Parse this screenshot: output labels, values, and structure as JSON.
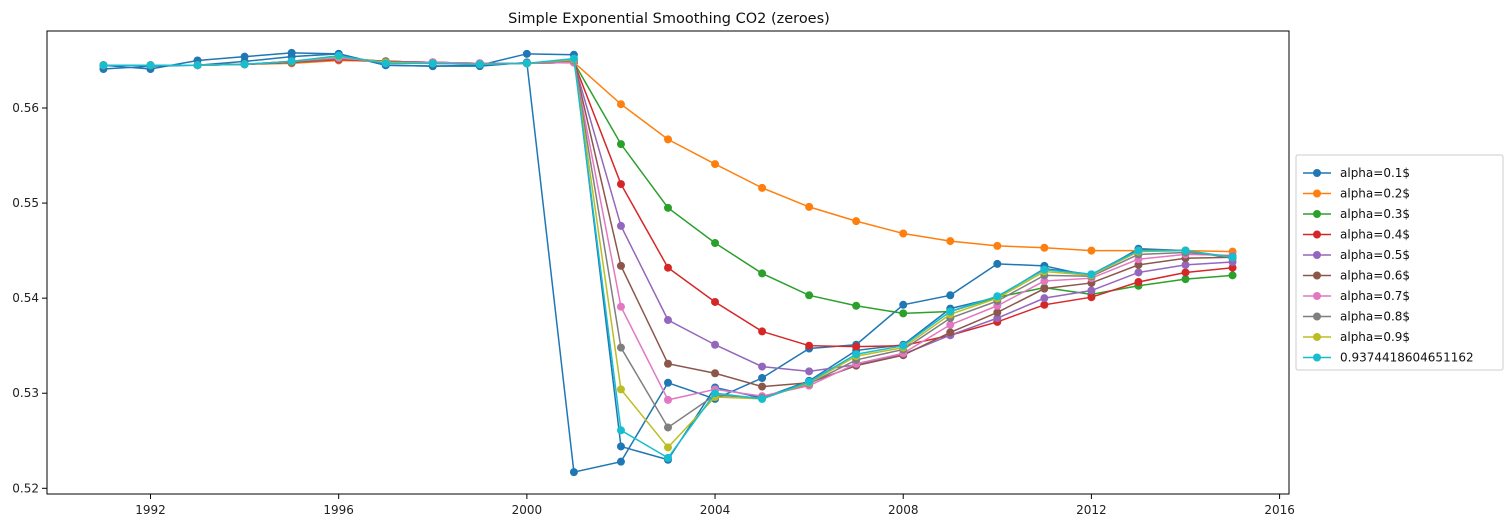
{
  "chart_data": {
    "type": "line",
    "title": "Simple Exponential Smoothing CO2 (zeroes)",
    "xlabel": "",
    "ylabel": "",
    "xlim": [
      1989.8,
      2016.2
    ],
    "ylim": [
      0.5194,
      0.5681
    ],
    "x_ticks": [
      1992,
      1996,
      2000,
      2004,
      2008,
      2012,
      2016
    ],
    "y_ticks": [
      0.52,
      0.53,
      0.54,
      0.55,
      0.56
    ],
    "grid": false,
    "legend_position": "right, outside plot",
    "x": [
      1991,
      1992,
      1993,
      1994,
      1995,
      1996,
      1997,
      1998,
      1999,
      2000,
      2001,
      2002,
      2003,
      2004,
      2005,
      2006,
      2007,
      2008,
      2009,
      2010,
      2011,
      2012,
      2013,
      2014,
      2015
    ],
    "observed": [
      0.5645,
      0.5641,
      0.565,
      0.5654,
      0.5658,
      0.5657,
      0.5645,
      0.5644,
      0.5644,
      0.5648,
      0.5217,
      0.5228,
      0.5311,
      0.5294,
      0.5316,
      0.5347,
      0.5351,
      0.5393,
      0.5403,
      0.5436,
      0.5434,
      0.5423,
      0.5452,
      0.545,
      0.5442
    ],
    "series": [
      {
        "name": "alpha=0.1$",
        "color": "#1f77b4",
        "values": [
          0.5641,
          0.5644,
          0.5645,
          0.5649,
          0.5654,
          0.5657,
          0.5645,
          0.5644,
          0.5645,
          0.5657,
          0.5656,
          0.5244,
          0.523,
          0.5306,
          0.5295,
          0.5313,
          0.5345,
          0.5351,
          0.5389,
          0.5401,
          0.5431,
          0.5425,
          0.5451,
          0.545,
          0.5443
        ]
      },
      {
        "name": "alpha=0.2$",
        "color": "#ff7f0e",
        "values": [
          0.5645,
          0.5645,
          0.5645,
          0.5646,
          0.5647,
          0.565,
          0.5649,
          0.5648,
          0.5647,
          0.5647,
          0.5648,
          0.5604,
          0.5567,
          0.5541,
          0.5516,
          0.5496,
          0.5481,
          0.5468,
          0.546,
          0.5455,
          0.5453,
          0.545,
          0.545,
          0.545,
          0.5449
        ]
      },
      {
        "name": "alpha=0.3$",
        "color": "#2ca02c",
        "values": [
          0.5645,
          0.5645,
          0.5645,
          0.5646,
          0.5648,
          0.5651,
          0.5649,
          0.5648,
          0.5647,
          0.5647,
          0.5648,
          0.5562,
          0.5495,
          0.5458,
          0.5426,
          0.5403,
          0.5392,
          0.5384,
          0.5386,
          0.5401,
          0.5411,
          0.5404,
          0.5413,
          0.542,
          0.5424
        ]
      },
      {
        "name": "alpha=0.4$",
        "color": "#d62728",
        "values": [
          0.5645,
          0.5645,
          0.5645,
          0.5646,
          0.5648,
          0.5651,
          0.5649,
          0.5648,
          0.5647,
          0.5647,
          0.5648,
          0.552,
          0.5432,
          0.5396,
          0.5365,
          0.535,
          0.5349,
          0.535,
          0.5361,
          0.5375,
          0.5393,
          0.5401,
          0.5417,
          0.5427,
          0.5432
        ]
      },
      {
        "name": "alpha=0.5$",
        "color": "#9467bd",
        "values": [
          0.5645,
          0.5645,
          0.5645,
          0.5646,
          0.5648,
          0.5652,
          0.5649,
          0.5648,
          0.5647,
          0.5647,
          0.5648,
          0.5476,
          0.5377,
          0.5351,
          0.5328,
          0.5323,
          0.533,
          0.5341,
          0.5361,
          0.5379,
          0.54,
          0.5408,
          0.5427,
          0.5435,
          0.5438
        ]
      },
      {
        "name": "alpha=0.6$",
        "color": "#8c564b",
        "values": [
          0.5645,
          0.5645,
          0.5645,
          0.5646,
          0.5648,
          0.5653,
          0.5649,
          0.5648,
          0.5647,
          0.5647,
          0.5648,
          0.5434,
          0.5331,
          0.5321,
          0.5307,
          0.5311,
          0.5329,
          0.534,
          0.5364,
          0.5385,
          0.541,
          0.5416,
          0.5435,
          0.5442,
          0.5443
        ]
      },
      {
        "name": "alpha=0.7$",
        "color": "#e377c2",
        "values": [
          0.5645,
          0.5645,
          0.5645,
          0.5646,
          0.5649,
          0.5653,
          0.5648,
          0.5648,
          0.5647,
          0.5647,
          0.5648,
          0.5391,
          0.5293,
          0.5304,
          0.5297,
          0.5308,
          0.5331,
          0.5342,
          0.5372,
          0.5392,
          0.5418,
          0.5421,
          0.5441,
          0.5446,
          0.5445
        ]
      },
      {
        "name": "alpha=0.8$",
        "color": "#7f7f7f",
        "values": [
          0.5645,
          0.5645,
          0.5645,
          0.5646,
          0.5649,
          0.5654,
          0.5648,
          0.5647,
          0.5646,
          0.5647,
          0.565,
          0.5348,
          0.5264,
          0.5298,
          0.5295,
          0.531,
          0.5335,
          0.5346,
          0.5379,
          0.5397,
          0.5424,
          0.5423,
          0.5446,
          0.5448,
          0.5444
        ]
      },
      {
        "name": "alpha=0.9$",
        "color": "#bcbd22",
        "values": [
          0.5645,
          0.5645,
          0.5645,
          0.5646,
          0.5649,
          0.5654,
          0.5648,
          0.5647,
          0.5646,
          0.5647,
          0.5651,
          0.5304,
          0.5243,
          0.5296,
          0.5294,
          0.5311,
          0.5339,
          0.5348,
          0.5383,
          0.54,
          0.5428,
          0.5424,
          0.5449,
          0.545,
          0.5443
        ]
      },
      {
        "name": "0.9374418604651162",
        "color": "#17becf",
        "values": [
          0.5645,
          0.5645,
          0.5645,
          0.5646,
          0.5649,
          0.5655,
          0.5647,
          0.5647,
          0.5646,
          0.5647,
          0.5652,
          0.5261,
          0.5232,
          0.53,
          0.5294,
          0.5312,
          0.5341,
          0.535,
          0.5386,
          0.5402,
          0.543,
          0.5425,
          0.545,
          0.545,
          0.5443
        ]
      }
    ]
  }
}
